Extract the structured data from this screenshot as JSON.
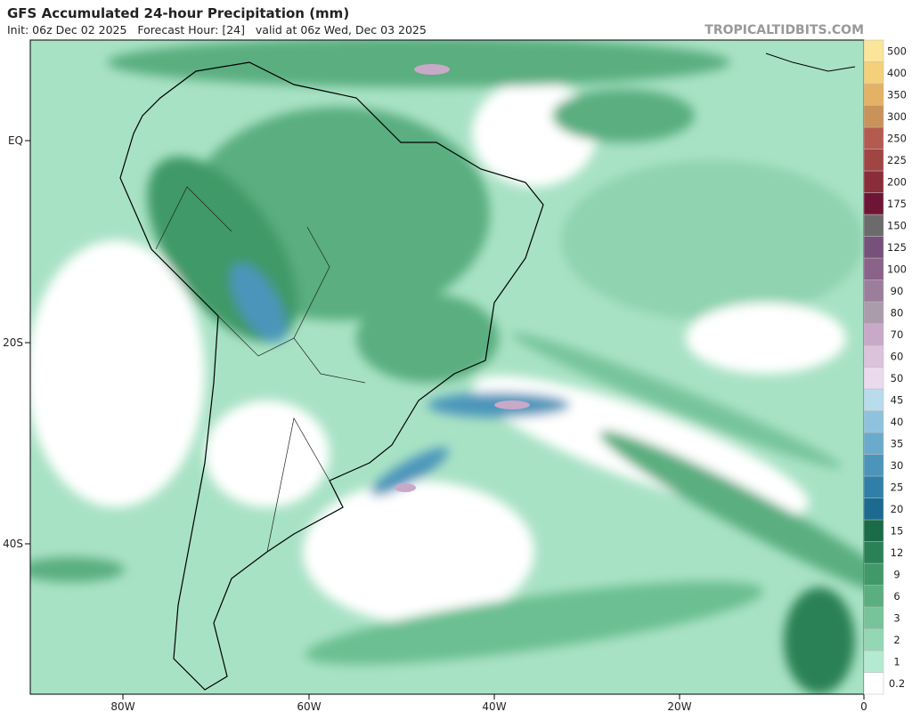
{
  "header": {
    "title": "GFS Accumulated 24-hour Precipitation (mm)",
    "subtitle": "Init: 06z Dec 02 2025   Forecast Hour: [24]   valid at 06z Wed, Dec 03 2025",
    "source": "TROPICALTIDBITS.COM"
  },
  "map": {
    "lat_labels": [
      "EQ",
      "20S",
      "40S"
    ],
    "lon_labels": [
      "80W",
      "60W",
      "40W",
      "20W",
      "0"
    ]
  },
  "colorbar": {
    "levels": [
      {
        "label": "0.2",
        "color": "#ffffff"
      },
      {
        "label": "1",
        "color": "#b4ead0"
      },
      {
        "label": "2",
        "color": "#93d7b4"
      },
      {
        "label": "3",
        "color": "#77c49b"
      },
      {
        "label": "6",
        "color": "#5aae80"
      },
      {
        "label": "9",
        "color": "#3f9968"
      },
      {
        "label": "12",
        "color": "#2a8155"
      },
      {
        "label": "15",
        "color": "#1a6b47"
      },
      {
        "label": "20",
        "color": "#1c6a8f"
      },
      {
        "label": "25",
        "color": "#2f7fa8"
      },
      {
        "label": "30",
        "color": "#4b95bb"
      },
      {
        "label": "35",
        "color": "#6aabcc"
      },
      {
        "label": "40",
        "color": "#8fc3dd"
      },
      {
        "label": "45",
        "color": "#b9dcec"
      },
      {
        "label": "50",
        "color": "#ebdaee"
      },
      {
        "label": "60",
        "color": "#dcc3dc"
      },
      {
        "label": "70",
        "color": "#c8a9c8"
      },
      {
        "label": "80",
        "color": "#aa9caa"
      },
      {
        "label": "90",
        "color": "#9c7e9c"
      },
      {
        "label": "100",
        "color": "#8a628a"
      },
      {
        "label": "125",
        "color": "#76527a"
      },
      {
        "label": "150",
        "color": "#6b6b6b"
      },
      {
        "label": "175",
        "color": "#6e1535"
      },
      {
        "label": "200",
        "color": "#8b2c3a"
      },
      {
        "label": "225",
        "color": "#a04444"
      },
      {
        "label": "250",
        "color": "#b55a4f"
      },
      {
        "label": "300",
        "color": "#c8925a"
      },
      {
        "label": "350",
        "color": "#e3b265"
      },
      {
        "label": "400",
        "color": "#f5d07a"
      },
      {
        "label": "500",
        "color": "#fbe59a"
      }
    ]
  }
}
